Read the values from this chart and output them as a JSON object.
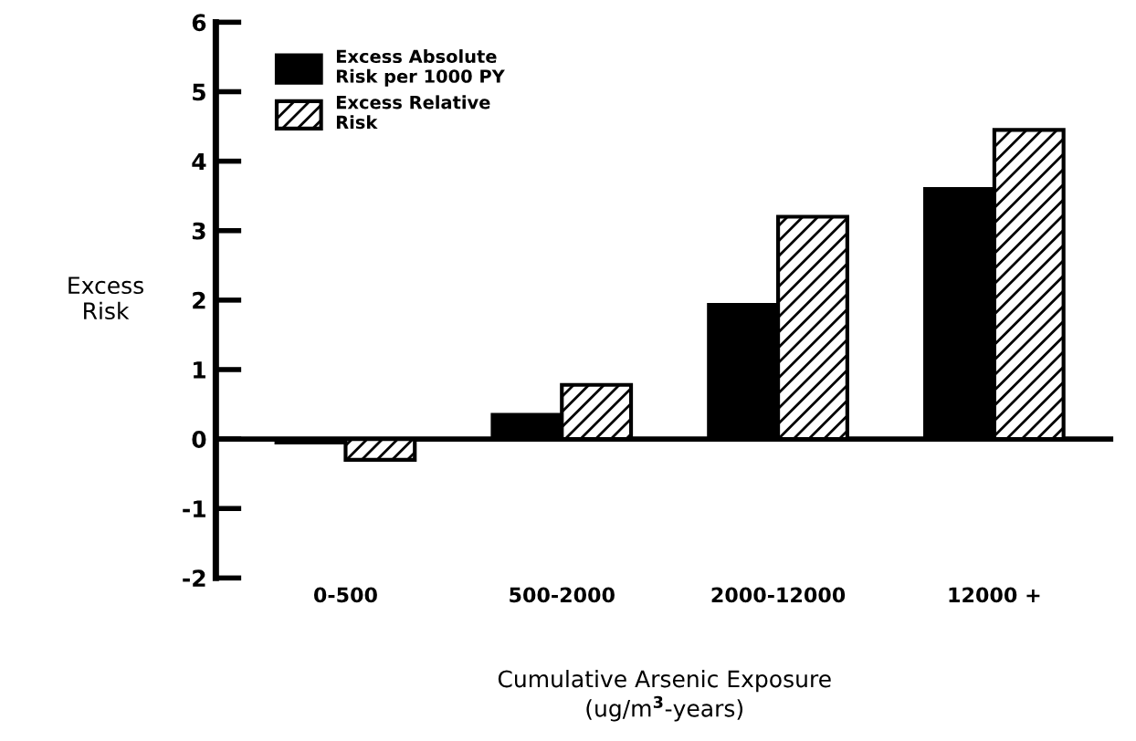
{
  "chart_data": {
    "type": "bar",
    "xlabel": "Cumulative Arsenic Exposure\n(ug/m$^{3}$-years)",
    "ylabel": "Excess\nRisk",
    "categories": [
      "0-500",
      "500-2000",
      "2000-12000",
      "12000 +"
    ],
    "series": [
      {
        "name": "Excess Absolute\nRisk per 1000 PY",
        "color": "#000000",
        "values": [
          -0.05,
          0.35,
          1.93,
          3.6
        ]
      },
      {
        "name": "Excess Relative\nRisk",
        "color": "#000000",
        "values": [
          -0.3,
          0.78,
          3.2,
          4.45
        ]
      }
    ],
    "ylim": [
      -2,
      6
    ],
    "yticks": [
      -2,
      -1,
      0,
      1,
      2,
      3,
      4,
      5,
      6
    ],
    "ref_lines": [
      {
        "axis": "y",
        "value": 0,
        "color": "#000000"
      }
    ],
    "legend": "top left",
    "grid": false
  }
}
